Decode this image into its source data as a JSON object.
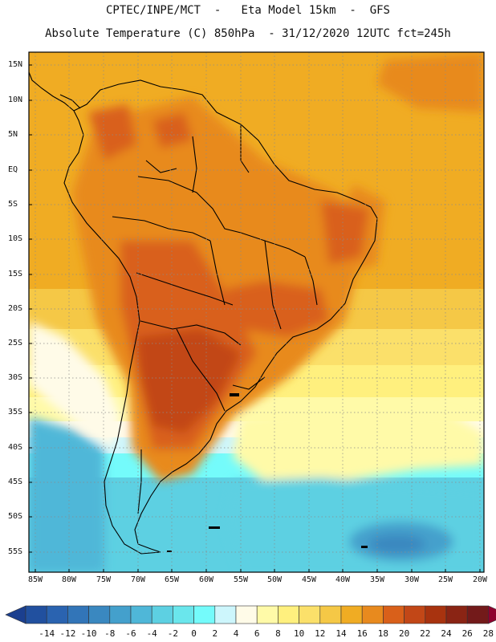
{
  "header": {
    "line1": "CPTEC/INPE/MCT  -   Eta Model 15km  -  GFS",
    "line2": "Absolute Temperature (C) 850hPa  - 31/12/2020 12UTC fct=245h"
  },
  "map": {
    "lat_labels": [
      "15N",
      "10N",
      "5N",
      "EQ",
      "5S",
      "10S",
      "15S",
      "20S",
      "25S",
      "30S",
      "35S",
      "40S",
      "45S",
      "50S",
      "55S"
    ],
    "lon_labels": [
      "85W",
      "80W",
      "75W",
      "70W",
      "65W",
      "60W",
      "55W",
      "50W",
      "45W",
      "40W",
      "35W",
      "30W",
      "25W",
      "20W"
    ]
  },
  "legend": {
    "ticks": [
      "-14",
      "-12",
      "-10",
      "-8",
      "-6",
      "-4",
      "-2",
      "0",
      "2",
      "4",
      "6",
      "8",
      "10",
      "12",
      "14",
      "16",
      "18",
      "20",
      "22",
      "24",
      "26",
      "28"
    ],
    "colors": [
      "#1b3f8f",
      "#21509f",
      "#2a63b0",
      "#3275b8",
      "#3a88c0",
      "#44a0cc",
      "#4fb7d8",
      "#5dd0e2",
      "#6ae6ec",
      "#74fbfb",
      "#cdf6fc",
      "#fffbe8",
      "#fffaa8",
      "#fff07e",
      "#fbe06a",
      "#f5c846",
      "#f0ac23",
      "#e88a1e",
      "#d9601a",
      "#c24717",
      "#a8330f",
      "#8a2414",
      "#731a1a",
      "#8e002e"
    ]
  }
}
